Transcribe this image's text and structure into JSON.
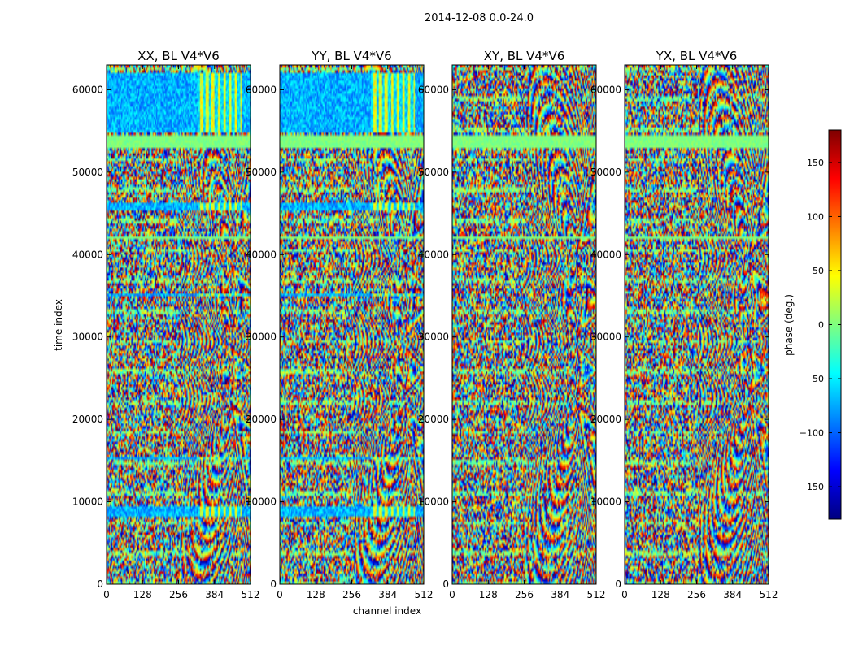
{
  "chart_data": {
    "type": "heatmap",
    "suptitle": "2014-12-08 0.0-24.0",
    "xlabel": "channel index",
    "ylabel": "time index",
    "xlim": [
      0,
      512
    ],
    "ylim": [
      0,
      63000
    ],
    "x_ticks": [
      0,
      128,
      256,
      384,
      512
    ],
    "y_ticks": [
      0,
      10000,
      20000,
      30000,
      40000,
      50000,
      60000
    ],
    "panels": [
      {
        "title": "XX, BL V4*V6",
        "polarization": "XX"
      },
      {
        "title": "YY, BL V4*V6",
        "polarization": "YY"
      },
      {
        "title": "XY, BL V4*V6",
        "polarization": "XY"
      },
      {
        "title": "YX, BL V4*V6",
        "polarization": "YX"
      }
    ],
    "colorbar": {
      "label": "phase (deg.)",
      "range": [
        -180,
        180
      ],
      "ticks": [
        -150,
        -100,
        -50,
        0,
        50,
        100,
        150
      ],
      "tick_labels": [
        "−150",
        "−100",
        "−50",
        "0",
        "50",
        "100",
        "150"
      ],
      "colormap": "jet"
    },
    "colormap_stops": [
      "#00007f",
      "#0000ff",
      "#007fff",
      "#00ffff",
      "#7fff7f",
      "#ffff00",
      "#ff7f00",
      "#ff0000",
      "#7f0000"
    ]
  }
}
